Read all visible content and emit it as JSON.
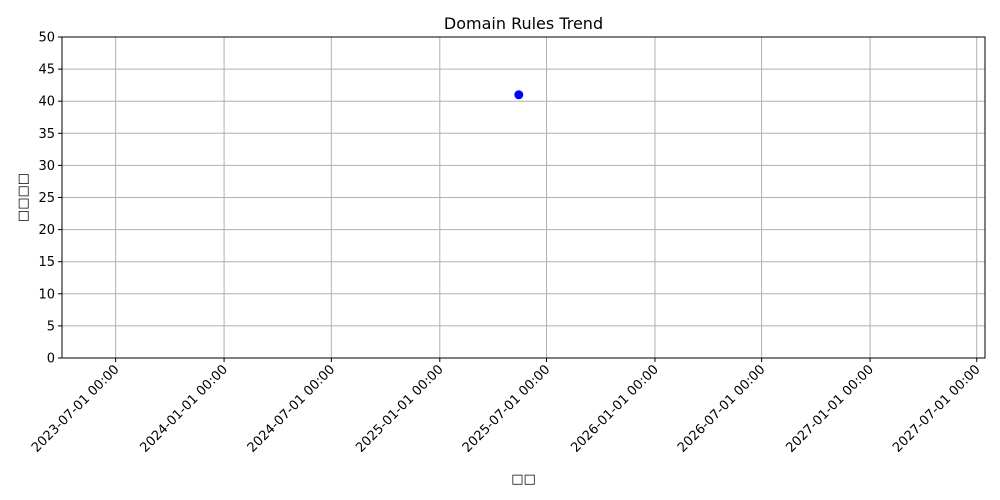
{
  "chart_data": {
    "type": "scatter",
    "title": "Domain Rules Trend",
    "xlabel": "□□",
    "ylabel": "□□□□",
    "x_ticks": [
      "2023-07-01 00:00",
      "2024-01-01 00:00",
      "2024-07-01 00:00",
      "2025-01-01 00:00",
      "2025-07-01 00:00",
      "2026-01-01 00:00",
      "2026-07-01 00:00",
      "2027-01-01 00:00",
      "2027-07-01 00:00"
    ],
    "y_ticks": [
      0,
      5,
      10,
      15,
      20,
      25,
      30,
      35,
      40,
      45,
      50
    ],
    "xlim": [
      "2023-04-01",
      "2027-07-15"
    ],
    "ylim": [
      0,
      50
    ],
    "grid": true,
    "series": [
      {
        "x": [
          "2025-05-15"
        ],
        "y": [
          41
        ],
        "color": "#0000ff",
        "marker": "circle"
      }
    ]
  }
}
